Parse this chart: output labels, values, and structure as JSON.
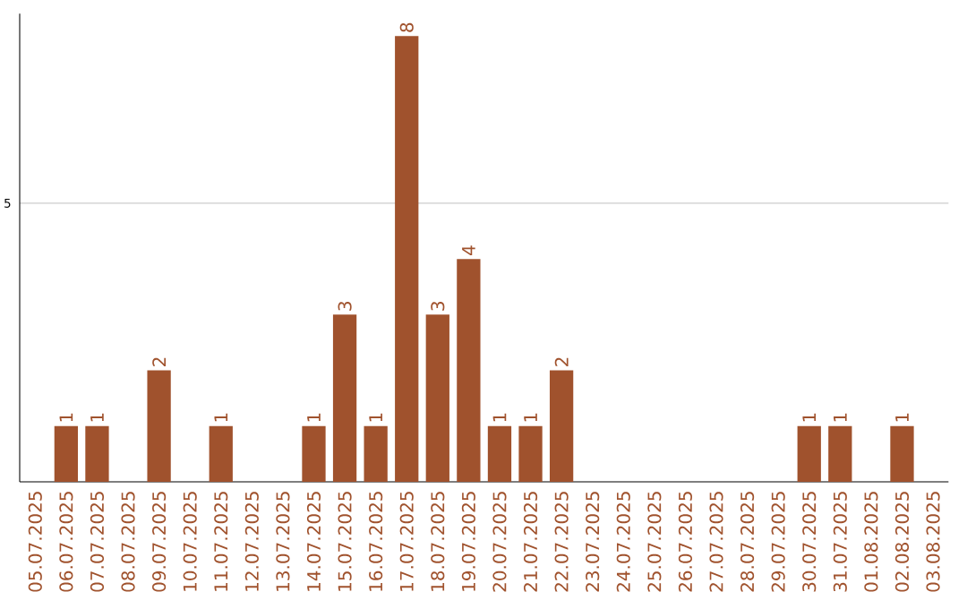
{
  "chart_data": {
    "type": "bar",
    "categories": [
      "05.07.2025",
      "06.07.2025",
      "07.07.2025",
      "08.07.2025",
      "09.07.2025",
      "10.07.2025",
      "11.07.2025",
      "12.07.2025",
      "13.07.2025",
      "14.07.2025",
      "15.07.2025",
      "16.07.2025",
      "17.07.2025",
      "18.07.2025",
      "19.07.2025",
      "20.07.2025",
      "21.07.2025",
      "22.07.2025",
      "23.07.2025",
      "24.07.2025",
      "25.07.2025",
      "26.07.2025",
      "27.07.2025",
      "28.07.2025",
      "29.07.2025",
      "30.07.2025",
      "31.07.2025",
      "01.08.2025",
      "02.08.2025",
      "03.08.2025"
    ],
    "values": [
      0,
      1,
      1,
      0,
      2,
      0,
      1,
      0,
      0,
      1,
      3,
      1,
      8,
      3,
      4,
      1,
      1,
      2,
      0,
      0,
      0,
      0,
      0,
      0,
      0,
      1,
      1,
      0,
      1,
      0
    ],
    "value_labels": [
      null,
      "1",
      "1",
      null,
      "2",
      null,
      "1",
      null,
      null,
      "1",
      "3",
      "1",
      "8",
      "3",
      "4",
      "1",
      "1",
      "2",
      null,
      null,
      null,
      null,
      null,
      null,
      null,
      "1",
      "1",
      null,
      "1",
      null
    ],
    "color": "#a0522d",
    "ylim": [
      0,
      8.4
    ],
    "yticks": [
      5
    ],
    "grid": "y"
  }
}
